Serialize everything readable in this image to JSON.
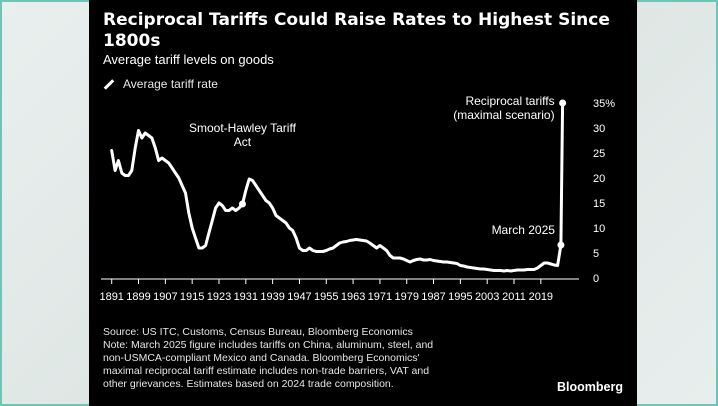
{
  "chart_data": {
    "type": "line",
    "title": "Reciprocal Tariffs Could Raise Rates to Highest Since 1800s",
    "subtitle": "Average tariff levels on goods",
    "series": [
      {
        "name": "Average tariff rate",
        "color": "#ffffff",
        "points": [
          [
            1891,
            25.5
          ],
          [
            1892,
            21.5
          ],
          [
            1893,
            23.5
          ],
          [
            1894,
            21
          ],
          [
            1895,
            20.5
          ],
          [
            1896,
            20.5
          ],
          [
            1897,
            21.5
          ],
          [
            1898,
            26
          ],
          [
            1899,
            29.5
          ],
          [
            1900,
            28
          ],
          [
            1901,
            29
          ],
          [
            1902,
            28.5
          ],
          [
            1903,
            28
          ],
          [
            1904,
            26
          ],
          [
            1905,
            23.5
          ],
          [
            1906,
            24
          ],
          [
            1907,
            23.5
          ],
          [
            1908,
            23
          ],
          [
            1909,
            22
          ],
          [
            1910,
            21
          ],
          [
            1911,
            20
          ],
          [
            1912,
            18.5
          ],
          [
            1913,
            17
          ],
          [
            1914,
            13
          ],
          [
            1915,
            10
          ],
          [
            1916,
            8
          ],
          [
            1917,
            6
          ],
          [
            1918,
            6
          ],
          [
            1919,
            6.5
          ],
          [
            1920,
            9
          ],
          [
            1921,
            11.5
          ],
          [
            1922,
            14
          ],
          [
            1923,
            15
          ],
          [
            1924,
            14.5
          ],
          [
            1925,
            13.5
          ],
          [
            1926,
            13.5
          ],
          [
            1927,
            14
          ],
          [
            1928,
            13.5
          ],
          [
            1929,
            14
          ],
          [
            1930,
            14.8
          ],
          [
            1931,
            17.5
          ],
          [
            1932,
            19.8
          ],
          [
            1933,
            19.5
          ],
          [
            1934,
            18.5
          ],
          [
            1935,
            17.5
          ],
          [
            1936,
            16.5
          ],
          [
            1937,
            15.5
          ],
          [
            1938,
            15
          ],
          [
            1939,
            14
          ],
          [
            1940,
            12.5
          ],
          [
            1941,
            12
          ],
          [
            1942,
            11.5
          ],
          [
            1943,
            11
          ],
          [
            1944,
            10
          ],
          [
            1945,
            9.5
          ],
          [
            1946,
            8
          ],
          [
            1947,
            6
          ],
          [
            1948,
            5.5
          ],
          [
            1949,
            5.5
          ],
          [
            1950,
            6
          ],
          [
            1951,
            5.5
          ],
          [
            1952,
            5.3
          ],
          [
            1953,
            5.3
          ],
          [
            1954,
            5.3
          ],
          [
            1955,
            5.5
          ],
          [
            1956,
            5.8
          ],
          [
            1957,
            6
          ],
          [
            1958,
            6.5
          ],
          [
            1959,
            7
          ],
          [
            1960,
            7.2
          ],
          [
            1961,
            7.3
          ],
          [
            1962,
            7.5
          ],
          [
            1963,
            7.6
          ],
          [
            1964,
            7.7
          ],
          [
            1965,
            7.6
          ],
          [
            1966,
            7.5
          ],
          [
            1967,
            7.4
          ],
          [
            1968,
            7
          ],
          [
            1969,
            6.5
          ],
          [
            1970,
            6
          ],
          [
            1971,
            6.5
          ],
          [
            1972,
            6
          ],
          [
            1973,
            5.5
          ],
          [
            1974,
            4.5
          ],
          [
            1975,
            4
          ],
          [
            1976,
            4
          ],
          [
            1977,
            4
          ],
          [
            1978,
            3.8
          ],
          [
            1979,
            3.5
          ],
          [
            1980,
            3.2
          ],
          [
            1981,
            3.5
          ],
          [
            1982,
            3.7
          ],
          [
            1983,
            3.8
          ],
          [
            1984,
            3.6
          ],
          [
            1985,
            3.6
          ],
          [
            1986,
            3.7
          ],
          [
            1987,
            3.5
          ],
          [
            1988,
            3.4
          ],
          [
            1989,
            3.3
          ],
          [
            1990,
            3.2
          ],
          [
            1991,
            3.2
          ],
          [
            1992,
            3.1
          ],
          [
            1993,
            3
          ],
          [
            1994,
            2.9
          ],
          [
            1995,
            2.5
          ],
          [
            1996,
            2.4
          ],
          [
            1997,
            2.2
          ],
          [
            1998,
            2.1
          ],
          [
            1999,
            2
          ],
          [
            2000,
            1.9
          ],
          [
            2001,
            1.8
          ],
          [
            2002,
            1.8
          ],
          [
            2003,
            1.7
          ],
          [
            2004,
            1.6
          ],
          [
            2005,
            1.5
          ],
          [
            2006,
            1.5
          ],
          [
            2007,
            1.5
          ],
          [
            2008,
            1.4
          ],
          [
            2009,
            1.5
          ],
          [
            2010,
            1.4
          ],
          [
            2011,
            1.5
          ],
          [
            2012,
            1.6
          ],
          [
            2013,
            1.6
          ],
          [
            2014,
            1.6
          ],
          [
            2015,
            1.7
          ],
          [
            2016,
            1.7
          ],
          [
            2017,
            1.7
          ],
          [
            2018,
            2
          ],
          [
            2019,
            2.5
          ],
          [
            2020,
            3
          ],
          [
            2021,
            3
          ],
          [
            2022,
            2.8
          ],
          [
            2023,
            2.6
          ],
          [
            2024,
            2.5
          ],
          [
            2025,
            6.6
          ],
          [
            2025.5,
            35
          ]
        ]
      }
    ],
    "x_ticks": [
      1891,
      1899,
      1907,
      1915,
      1923,
      1931,
      1939,
      1947,
      1955,
      1963,
      1971,
      1979,
      1987,
      1995,
      2003,
      2011,
      2019
    ],
    "y_ticks": [
      0,
      5,
      10,
      15,
      20,
      25,
      30,
      35
    ],
    "y_tick_labels": [
      "0",
      "5",
      "10",
      "15",
      "20",
      "25",
      "30",
      "35%"
    ],
    "xlim": [
      1889,
      2028
    ],
    "ylim": [
      0,
      35
    ],
    "grid": false,
    "legend": "top-left",
    "annotations": [
      {
        "lines": [
          "Smoot-Hawley Tariff",
          "Act"
        ],
        "x": 1930,
        "y": 14.8,
        "marker": true
      },
      {
        "lines": [
          "March 2025"
        ],
        "x": 2025,
        "y": 6.6,
        "marker": true
      },
      {
        "lines": [
          "Reciprocal tariffs",
          "(maximal scenario)"
        ],
        "x": 2025.5,
        "y": 35,
        "marker": true
      }
    ]
  },
  "footnote": [
    "Source: US ITC, Customs, Census Bureau, Bloomberg Economics",
    "Note: March 2025 figure includes tariffs on China, aluminum, steel, and",
    "non-USMCA-compliant Mexico and Canada. Bloomberg Economics'",
    "maximal reciprocal tariff estimate includes non-trade barriers, VAT and",
    "other grievances. Estimates based on 2024 trade composition."
  ],
  "brand": "Bloomberg",
  "colors": {
    "background": "#000000",
    "line": "#ffffff",
    "text": "#ffffff",
    "frame_border": "#6ec4b7"
  }
}
